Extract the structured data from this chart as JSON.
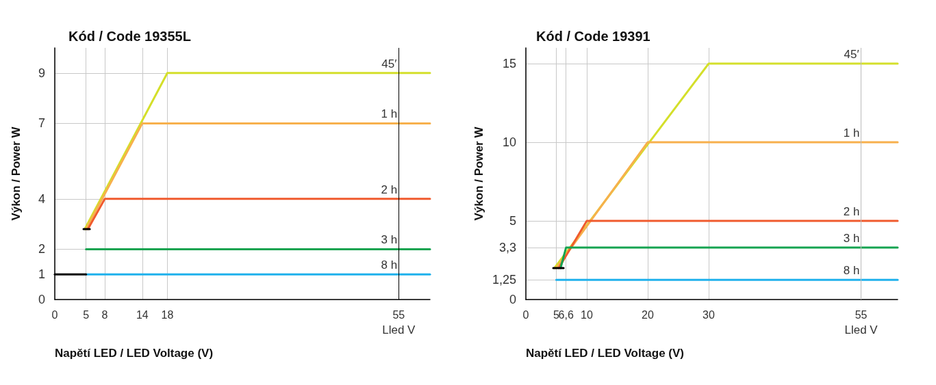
{
  "chart_data": [
    {
      "type": "line",
      "title": "Kód / Code 19355L",
      "xlabel": "Napětí LED / LED Voltage (V)",
      "ylabel": "Výkon / Power W",
      "annotations": [
        "Lled V"
      ],
      "xlim": [
        0,
        60
      ],
      "xticks": [
        0,
        5,
        8,
        14,
        18,
        55
      ],
      "ylim": [
        0,
        10
      ],
      "yticks": [
        0,
        1,
        2,
        4,
        7,
        9
      ],
      "grid": true,
      "legend": false,
      "ref_lines": [
        {
          "axis": "x",
          "value": 55,
          "color": "#000000"
        }
      ],
      "series": [
        {
          "name": "45′",
          "color": "#d4df2a",
          "x": [
            4.8,
            18,
            55,
            60
          ],
          "values": [
            2.8,
            9,
            9,
            9
          ]
        },
        {
          "name": "1 h",
          "color": "#f7b04c",
          "x": [
            5,
            14,
            55,
            60
          ],
          "values": [
            2.8,
            7,
            7,
            7
          ]
        },
        {
          "name": "2 h",
          "color": "#f05a2d",
          "x": [
            5.3,
            8,
            55,
            60
          ],
          "values": [
            2.8,
            4,
            4,
            4
          ]
        },
        {
          "name": "3 h",
          "color": "#14a350",
          "x": [
            5,
            55,
            60
          ],
          "values": [
            2,
            2,
            2
          ]
        },
        {
          "name": "8 h",
          "color": "#1fb1ec",
          "x": [
            5,
            55,
            60
          ],
          "values": [
            1,
            1,
            1
          ]
        },
        {
          "color": "#000000",
          "x": [
            0,
            5
          ],
          "values": [
            1,
            1
          ]
        },
        {
          "color": "#000000",
          "x": [
            4.6,
            5.6
          ],
          "values": [
            2.8,
            2.8
          ]
        }
      ]
    },
    {
      "type": "line",
      "title": "Kód / Code 19391",
      "xlabel": "Napětí LED / LED Voltage (V)",
      "ylabel": "Výkon / Power W",
      "annotations": [
        "Lled V"
      ],
      "xlim": [
        0,
        61
      ],
      "xticks": [
        0,
        5,
        {
          "value": 6.6,
          "label": "6,6"
        },
        10,
        20,
        30,
        55
      ],
      "ylim": [
        0,
        16
      ],
      "yticks": [
        0,
        {
          "value": 1.25,
          "label": "1,25"
        },
        {
          "value": 3.3,
          "label": "3,3"
        },
        5,
        10,
        15
      ],
      "grid": true,
      "legend": false,
      "ref_lines": [
        {
          "axis": "x",
          "value": 55,
          "color": "#bbbbbb"
        }
      ],
      "series": [
        {
          "name": "45′",
          "color": "#d4df2a",
          "x": [
            4.7,
            30,
            55,
            61
          ],
          "values": [
            2,
            15,
            15,
            15
          ]
        },
        {
          "name": "1 h",
          "color": "#f7b04c",
          "x": [
            5,
            20,
            55,
            61
          ],
          "values": [
            2,
            10,
            10,
            10
          ]
        },
        {
          "name": "2 h",
          "color": "#f05a2d",
          "x": [
            5.4,
            10,
            55,
            61
          ],
          "values": [
            2,
            5,
            5,
            5
          ]
        },
        {
          "name": "3 h",
          "color": "#14a350",
          "x": [
            5.7,
            6.6,
            55,
            61
          ],
          "values": [
            2,
            3.3,
            3.3,
            3.3
          ]
        },
        {
          "name": "8 h",
          "color": "#1fb1ec",
          "x": [
            5,
            55,
            61
          ],
          "values": [
            1.25,
            1.25,
            1.25
          ]
        },
        {
          "color": "#000000",
          "x": [
            4.5,
            6.2
          ],
          "values": [
            2,
            2
          ]
        }
      ]
    }
  ]
}
